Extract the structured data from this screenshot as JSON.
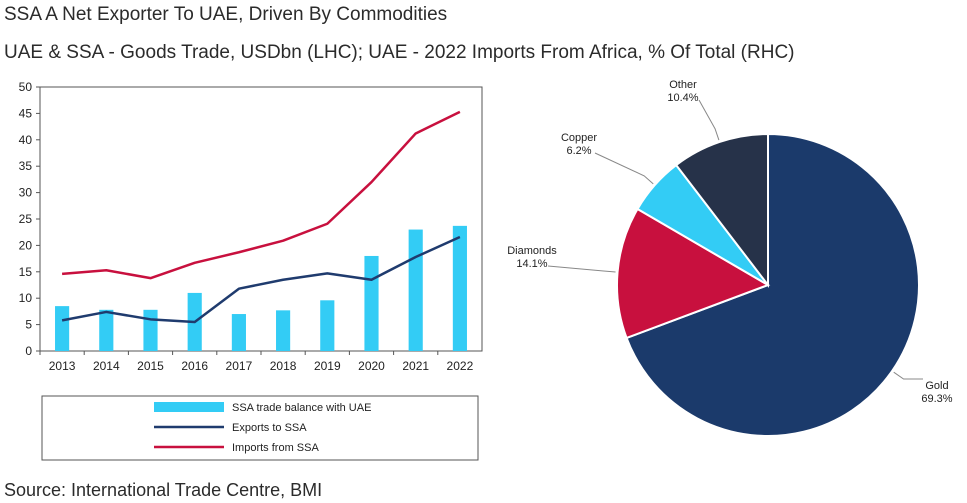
{
  "title": "SSA A Net Exporter To UAE, Driven By Commodities",
  "subtitle": "UAE & SSA - Goods Trade, USDbn (LHC); UAE - 2022 Imports From Africa, % Of Total (RHC)",
  "source": "Source: International Trade Centre, BMI",
  "chart_data": [
    {
      "type": "bar+line",
      "title": "UAE & SSA - Goods Trade, USDbn",
      "categories": [
        "2013",
        "2014",
        "2015",
        "2016",
        "2017",
        "2018",
        "2019",
        "2020",
        "2021",
        "2022"
      ],
      "ylim": [
        0,
        50
      ],
      "yticks": [
        0,
        5,
        10,
        15,
        20,
        25,
        30,
        35,
        40,
        45,
        50
      ],
      "grid": false,
      "legend_position": "bottom",
      "series": [
        {
          "name": "SSA trade balance with UAE",
          "kind": "bar",
          "color": "#33ccf5",
          "values": [
            8.5,
            7.8,
            7.8,
            11.0,
            7.0,
            7.7,
            9.6,
            18.0,
            23.0,
            23.7
          ]
        },
        {
          "name": "Exports to SSA",
          "kind": "line",
          "color": "#1f3b6e",
          "values": [
            5.8,
            7.4,
            6.0,
            5.5,
            11.8,
            13.5,
            14.7,
            13.5,
            17.8,
            21.6
          ]
        },
        {
          "name": "Imports from SSA",
          "kind": "line",
          "color": "#c8103e",
          "values": [
            14.6,
            15.3,
            13.8,
            16.7,
            18.7,
            20.9,
            24.1,
            32.0,
            41.2,
            45.3
          ]
        }
      ]
    },
    {
      "type": "pie",
      "title": "UAE - 2022 Imports From Africa, % Of Total",
      "slices": [
        {
          "label": "Gold",
          "value": 69.3,
          "display": "69.3%",
          "color": "#1b3a6b"
        },
        {
          "label": "Diamonds",
          "value": 14.1,
          "display": "14.1%",
          "color": "#c8103e"
        },
        {
          "label": "Copper",
          "value": 6.2,
          "display": "6.2%",
          "color": "#33ccf5"
        },
        {
          "label": "Other",
          "value": 10.4,
          "display": "10.4%",
          "color": "#263249"
        }
      ]
    }
  ]
}
